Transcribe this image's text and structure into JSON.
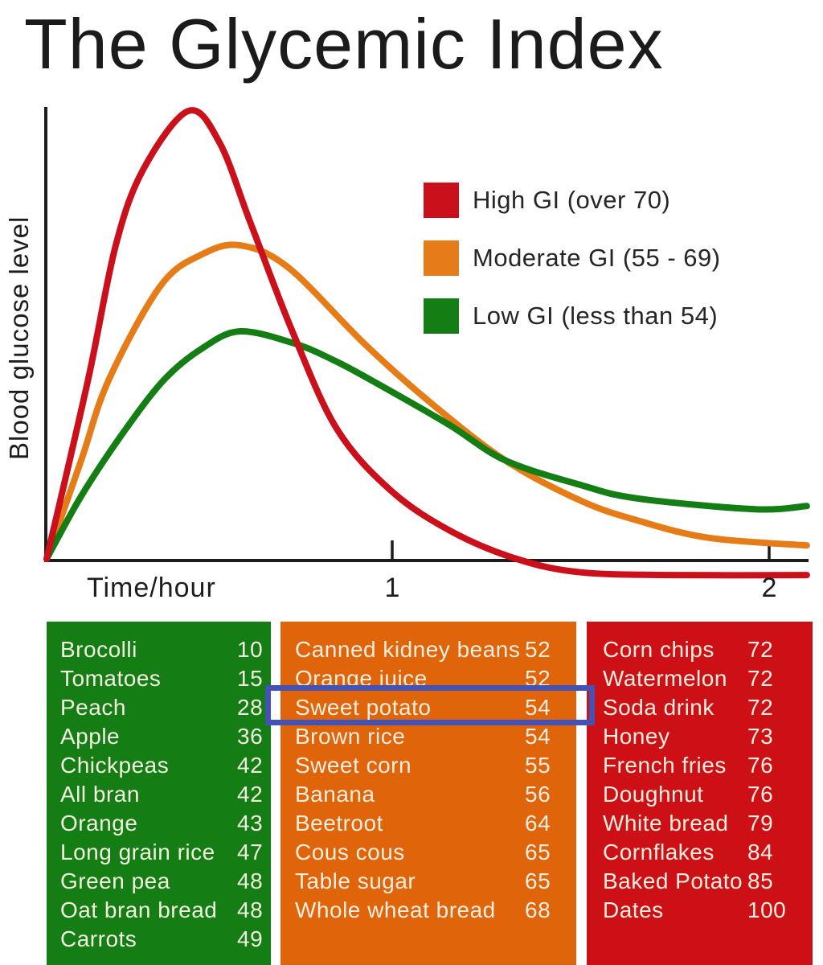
{
  "chart_data": {
    "type": "line",
    "title": "The Glycemic Index",
    "xlabel": "Time/hour",
    "ylabel": "Blood glucose level",
    "x_ticks": [
      {
        "label": "1",
        "hour": 1
      },
      {
        "label": "2",
        "hour": 2
      }
    ],
    "x_range_hours": [
      0,
      2.1
    ],
    "y_axis_note": "unlabeled axis; values are relative blood glucose level (0 = baseline, 1 = peak of high-GI curve)",
    "grid": false,
    "legend_position": "center-right",
    "series": [
      {
        "name": "High GI (over 70)",
        "color": "#c9101b",
        "points": [
          [
            0,
            0
          ],
          [
            0.12,
            0.4
          ],
          [
            0.2,
            0.7
          ],
          [
            0.28,
            0.87
          ],
          [
            0.41,
            1.0
          ],
          [
            0.5,
            0.93
          ],
          [
            0.59,
            0.75
          ],
          [
            0.71,
            0.51
          ],
          [
            0.84,
            0.29
          ],
          [
            1.0,
            0.15
          ],
          [
            1.16,
            0.06
          ],
          [
            1.33,
            0.0
          ],
          [
            1.5,
            -0.03
          ],
          [
            1.75,
            -0.036
          ],
          [
            2.1,
            -0.036
          ]
        ]
      },
      {
        "name": "Moderate GI (55 - 69)",
        "color": "#e57c18",
        "points": [
          [
            0,
            0
          ],
          [
            0.1,
            0.22
          ],
          [
            0.18,
            0.4
          ],
          [
            0.33,
            0.61
          ],
          [
            0.45,
            0.68
          ],
          [
            0.56,
            0.7
          ],
          [
            0.7,
            0.65
          ],
          [
            0.92,
            0.48
          ],
          [
            1.1,
            0.35
          ],
          [
            1.3,
            0.22
          ],
          [
            1.5,
            0.13
          ],
          [
            1.65,
            0.086
          ],
          [
            1.84,
            0.047
          ],
          [
            2.1,
            0.03
          ]
        ]
      },
      {
        "name": "Low GI (less than 54)",
        "color": "#147e14",
        "points": [
          [
            0,
            0
          ],
          [
            0.1,
            0.14
          ],
          [
            0.22,
            0.28
          ],
          [
            0.34,
            0.4
          ],
          [
            0.45,
            0.47
          ],
          [
            0.56,
            0.508
          ],
          [
            0.72,
            0.48
          ],
          [
            0.84,
            0.44
          ],
          [
            0.96,
            0.39
          ],
          [
            1.15,
            0.3
          ],
          [
            1.3,
            0.22
          ],
          [
            1.5,
            0.165
          ],
          [
            1.65,
            0.135
          ],
          [
            1.96,
            0.111
          ],
          [
            2.1,
            0.118
          ]
        ]
      }
    ]
  },
  "legend": {
    "items": [
      {
        "label": "High GI (over 70)",
        "color": "#c9101b"
      },
      {
        "label": "Moderate GI (55 - 69)",
        "color": "#e57c18"
      },
      {
        "label": "Low GI (less than 54)",
        "color": "#147e14"
      }
    ]
  },
  "tables": [
    {
      "id": "low",
      "category": "Low GI (less than 54)",
      "panel_color": "#147e14",
      "rows": [
        [
          "Brocolli",
          "10"
        ],
        [
          "Tomatoes",
          "15"
        ],
        [
          "Peach",
          "28"
        ],
        [
          "Apple",
          "36"
        ],
        [
          "Chickpeas",
          "42"
        ],
        [
          "All bran",
          "42"
        ],
        [
          "Orange",
          "43"
        ],
        [
          "Long grain rice",
          "47"
        ],
        [
          "Green pea",
          "48"
        ],
        [
          "Oat bran bread",
          "48"
        ],
        [
          "Carrots",
          "49"
        ]
      ]
    },
    {
      "id": "moderate",
      "category": "Moderate GI (55 - 69)",
      "panel_color": "#e0650a",
      "rows": [
        [
          "Canned kidney beans",
          "52"
        ],
        [
          "Orange juice",
          "52"
        ],
        [
          "Sweet potato",
          "54"
        ],
        [
          "Brown rice",
          "54"
        ],
        [
          "Sweet corn",
          "55"
        ],
        [
          "Banana",
          "56"
        ],
        [
          "Beetroot",
          "64"
        ],
        [
          "Cous cous",
          "65"
        ],
        [
          "Table sugar",
          "65"
        ],
        [
          "Whole wheat bread",
          "68"
        ]
      ]
    },
    {
      "id": "high",
      "category": "High GI (over 70)",
      "panel_color": "#cc1016",
      "rows": [
        [
          "Corn chips",
          "72"
        ],
        [
          "Watermelon",
          "72"
        ],
        [
          "Soda drink",
          "72"
        ],
        [
          "Honey",
          "73"
        ],
        [
          "French fries",
          "76"
        ],
        [
          "Doughnut",
          "76"
        ],
        [
          "White bread",
          "79"
        ],
        [
          "Cornflakes",
          "84"
        ],
        [
          "Baked Potato",
          "85"
        ],
        [
          "Dates",
          "100"
        ]
      ]
    }
  ],
  "highlight": {
    "food": "Sweet potato",
    "value": "54",
    "box_color": "#4352b4"
  },
  "colors": {
    "high_gi": "#c9101b",
    "moderate_gi_curve": "#e57c18",
    "moderate_gi_panel": "#e0650a",
    "low_gi": "#147e14",
    "highlight_blue": "#4352b4",
    "panel_text": "#f2eee0",
    "axis_ink": "#1c1c1c"
  }
}
